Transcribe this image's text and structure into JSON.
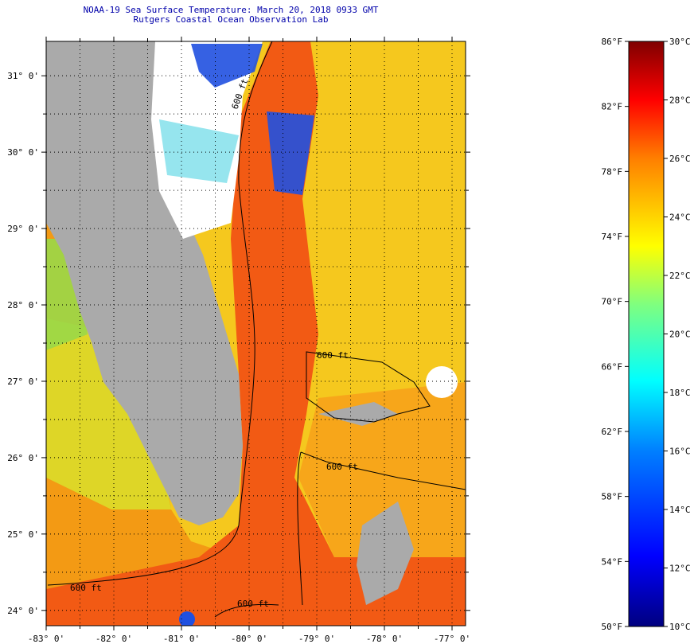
{
  "header": {
    "title": "NOAA-19 Sea Surface Temperature:  March 20, 2018 0933 GMT",
    "subtitle": "Rutgers Coastal Ocean Observation Lab"
  },
  "map": {
    "lat_labels": [
      "31° 0'",
      "30° 0'",
      "29° 0'",
      "28° 0'",
      "27° 0'",
      "26° 0'",
      "25° 0'",
      "24° 0'"
    ],
    "lon_labels": [
      "-83° 0'",
      "-82° 0'",
      "-81° 0'",
      "-80° 0'",
      "-79° 0'",
      "-78° 0'",
      "-77° 0'"
    ],
    "lat_range": [
      23.8,
      31.45
    ],
    "lon_range": [
      -83.0,
      -76.8
    ],
    "contour_label": "600 ft",
    "contour_labels": [
      "600 ft",
      "600 ft",
      "600 ft",
      "600 ft",
      "600 ft"
    ],
    "colors": {
      "land": "#aaaaaa",
      "cloud": "#ffffff",
      "gulf_stream": "#f25a14",
      "atlantic": "#f5c81e",
      "gulf": "#f39a14",
      "cold": "#2050e0"
    }
  },
  "colorbar": {
    "f_labels": [
      "86°F",
      "82°F",
      "78°F",
      "74°F",
      "70°F",
      "66°F",
      "62°F",
      "58°F",
      "54°F",
      "50°F"
    ],
    "c_labels": [
      "30°C",
      "28°C",
      "26°C",
      "24°C",
      "22°C",
      "20°C",
      "18°C",
      "16°C",
      "14°C",
      "12°C",
      "10°C"
    ],
    "range_f": [
      50,
      86
    ],
    "range_c": [
      10,
      30
    ],
    "stops": [
      "#00007f",
      "#0000ff",
      "#007fff",
      "#00ffff",
      "#7fff7f",
      "#ffff00",
      "#ff7f00",
      "#ff0000",
      "#7f0000"
    ]
  }
}
